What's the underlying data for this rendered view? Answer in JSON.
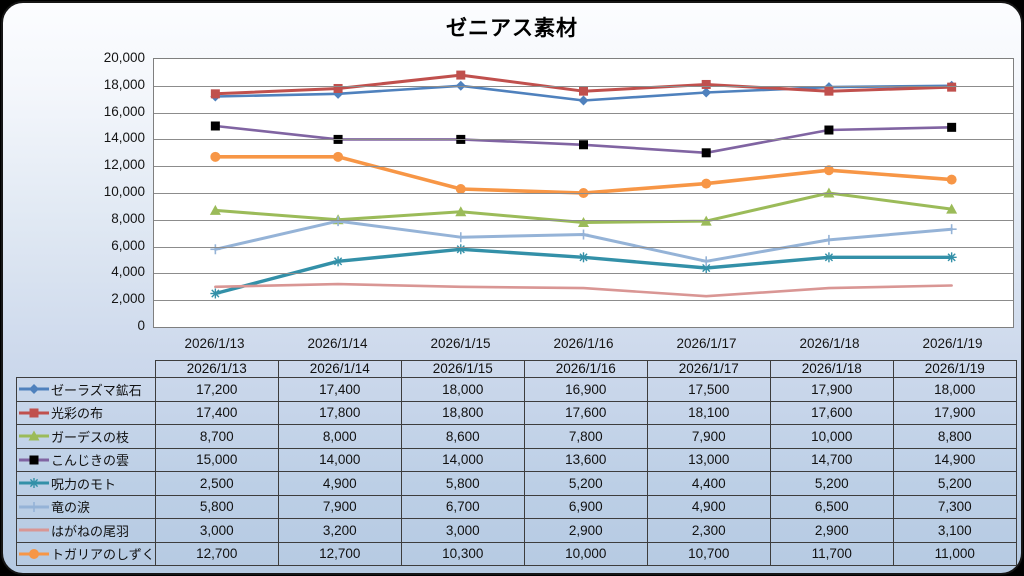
{
  "title": "ゼニアス素材",
  "chart_data": {
    "type": "line",
    "title": "ゼニアス素材",
    "categories": [
      "2026/1/13",
      "2026/1/14",
      "2026/1/15",
      "2026/1/16",
      "2026/1/17",
      "2026/1/18",
      "2026/1/19"
    ],
    "series": [
      {
        "name": "ゼーラズマ鉱石",
        "color": "#4F81BD",
        "marker": "diamond",
        "line_width": 2.6,
        "values": [
          17200,
          17400,
          18000,
          16900,
          17500,
          17900,
          18000
        ]
      },
      {
        "name": "光彩の布",
        "color": "#C0504D",
        "marker": "square",
        "line_width": 3.0,
        "values": [
          17400,
          17800,
          18800,
          17600,
          18100,
          17600,
          17900
        ]
      },
      {
        "name": "ガーデスの枝",
        "color": "#9BBB59",
        "marker": "triangle",
        "line_width": 3.0,
        "values": [
          8700,
          8000,
          8600,
          7800,
          7900,
          10000,
          8800
        ]
      },
      {
        "name": "こんじきの雲",
        "color": "#8064A2",
        "marker": "square",
        "marker_color": "#000000",
        "line_width": 2.6,
        "values": [
          15000,
          14000,
          14000,
          13600,
          13000,
          14700,
          14900
        ]
      },
      {
        "name": "呪力のモト",
        "color": "#3390A8",
        "marker": "asterisk",
        "line_width": 3.4,
        "values": [
          2500,
          4900,
          5800,
          5200,
          4400,
          5200,
          5200
        ]
      },
      {
        "name": "竜の涙",
        "color": "#95B3D7",
        "marker": "plus",
        "line_width": 3.0,
        "values": [
          5800,
          7900,
          6700,
          6900,
          4900,
          6500,
          7300
        ]
      },
      {
        "name": "はがねの尾羽",
        "color": "#D99694",
        "marker": "none",
        "line_width": 2.6,
        "values": [
          3000,
          3200,
          3000,
          2900,
          2300,
          2900,
          3100
        ]
      },
      {
        "name": "トガリアのしずく",
        "color": "#F79646",
        "marker": "circle",
        "line_width": 3.6,
        "values": [
          12700,
          12700,
          10300,
          10000,
          10700,
          11700,
          11000
        ]
      }
    ],
    "ylim": [
      0,
      20000
    ],
    "ytick_step": 2000,
    "y_ticks": [
      "0",
      "2,000",
      "4,000",
      "6,000",
      "8,000",
      "10,000",
      "12,000",
      "14,000",
      "16,000",
      "18,000",
      "20,000"
    ],
    "grid": true,
    "legend_position": "data-table-left",
    "data_table_shown": true
  },
  "colors": {
    "card_border": "#161616",
    "background_top": "#fcfdff",
    "background_bottom": "#b6cae2",
    "plot_background": "#ffffff",
    "gridline": "#8c8c8c",
    "axis_text": "#141414",
    "table_border": "#3d3d3d"
  }
}
